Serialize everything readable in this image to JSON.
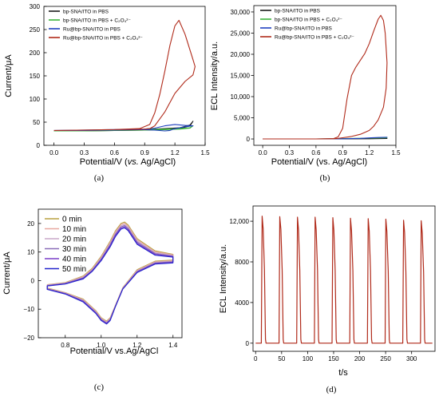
{
  "chart_data": [
    {
      "panel": "(a)",
      "type": "line",
      "xlabel_main": "Potential/V (",
      "xlabel_italic": "vs.",
      "xlabel_end": " Ag/AgCl)",
      "ylabel": "Current/μA",
      "xlim": [
        -0.1,
        1.5
      ],
      "ylim": [
        0,
        300
      ],
      "xticks": [
        0.0,
        0.3,
        0.6,
        0.9,
        1.2,
        1.5
      ],
      "xtick_labels": [
        "0.0",
        "0.3",
        "0.6",
        "0.9",
        "1.2",
        "1.5"
      ],
      "yticks": [
        0,
        50,
        100,
        150,
        200,
        250,
        300
      ],
      "ytick_labels": [
        "0",
        "50",
        "100",
        "150",
        "200",
        "250",
        "300"
      ],
      "legend_position": "top-left",
      "series": [
        {
          "name": "bp-SNA/ITO in PBS",
          "color": "#1a1a1a",
          "x": [
            0.0,
            0.3,
            0.6,
            0.9,
            1.1,
            1.25,
            1.35,
            1.38,
            1.35,
            1.25,
            1.1,
            0.9,
            0.6,
            0.3,
            0.0
          ],
          "y": [
            31,
            32,
            33,
            34,
            36,
            38,
            44,
            52,
            42,
            36,
            34,
            33,
            32,
            31,
            31
          ]
        },
        {
          "name": "bp-SNA/ITO in PBS + C₂O₄²⁻",
          "color": "#3cb33c",
          "x": [
            0.0,
            0.3,
            0.6,
            0.9,
            1.1,
            1.25,
            1.35,
            1.38,
            1.35,
            1.25,
            1.1,
            0.9,
            0.6,
            0.3,
            0.0
          ],
          "y": [
            31,
            32,
            33,
            34,
            35,
            36,
            38,
            42,
            37,
            35,
            34,
            33,
            32,
            31,
            31
          ]
        },
        {
          "name": "Ru@bp-SNA/ITO in PBS",
          "color": "#1f3fbf",
          "x": [
            0.0,
            0.3,
            0.6,
            0.9,
            1.0,
            1.1,
            1.2,
            1.3,
            1.38,
            1.3,
            1.2,
            1.15,
            1.1,
            1.0,
            0.9,
            0.6,
            0.3,
            0.0
          ],
          "y": [
            32,
            33,
            34,
            35,
            37,
            42,
            45,
            43,
            42,
            40,
            36,
            32,
            31,
            33,
            34,
            33,
            32,
            32
          ]
        },
        {
          "name": "Ru@bp-SNA/ITO in PBS + C₂O₄²⁻",
          "color": "#b02a1a",
          "x": [
            0.0,
            0.3,
            0.6,
            0.85,
            0.95,
            1.0,
            1.05,
            1.1,
            1.15,
            1.2,
            1.24,
            1.3,
            1.38,
            1.4,
            1.38,
            1.3,
            1.2,
            1.1,
            1.0,
            0.95,
            0.9,
            0.6,
            0.3,
            0.0
          ],
          "y": [
            32,
            33,
            34,
            36,
            45,
            70,
            110,
            160,
            215,
            258,
            270,
            240,
            185,
            170,
            152,
            138,
            112,
            72,
            42,
            36,
            35,
            34,
            33,
            32
          ]
        }
      ]
    },
    {
      "panel": "(b)",
      "type": "line",
      "xlabel": "Potential/V (vs. Ag/AgCl)",
      "ylabel": "ECL Intensity/a.u.",
      "xlim": [
        -0.1,
        1.5
      ],
      "ylim": [
        -1500,
        31500
      ],
      "xticks": [
        0.0,
        0.3,
        0.6,
        0.9,
        1.2,
        1.5
      ],
      "xtick_labels": [
        "0.0",
        "0.3",
        "0.6",
        "0.9",
        "1.2",
        "1.5"
      ],
      "yticks": [
        0,
        5000,
        10000,
        15000,
        20000,
        25000,
        30000
      ],
      "ytick_labels": [
        "0",
        "5,000",
        "10,000",
        "15,000",
        "20,000",
        "25,000",
        "30,000"
      ],
      "legend_position": "top-left",
      "series": [
        {
          "name": "bp-SNA/ITO in PBS",
          "color": "#1a1a1a",
          "x": [
            0.0,
            0.6,
            0.9,
            1.2,
            1.4,
            1.2,
            0.9,
            0.6,
            0.0
          ],
          "y": [
            0,
            0,
            0,
            50,
            100,
            50,
            0,
            0,
            0
          ]
        },
        {
          "name": "bp-SNA/ITO in PBS + C₂O₄²⁻",
          "color": "#3cb33c",
          "x": [
            0.0,
            0.6,
            0.9,
            1.2,
            1.4,
            1.2,
            0.9,
            0.6,
            0.0
          ],
          "y": [
            0,
            0,
            100,
            200,
            300,
            200,
            100,
            0,
            0
          ]
        },
        {
          "name": "Ru@bp-SNA/ITO in PBS",
          "color": "#1f3fbf",
          "x": [
            0.0,
            0.6,
            0.9,
            1.1,
            1.2,
            1.3,
            1.4,
            1.3,
            1.2,
            1.1,
            0.9,
            0.6,
            0.0
          ],
          "y": [
            0,
            0,
            50,
            150,
            250,
            350,
            400,
            350,
            250,
            150,
            50,
            0,
            0
          ]
        },
        {
          "name": "Ru@bp-SNA/ITO in PBS + C₂O₄²⁻",
          "color": "#b02a1a",
          "x": [
            0.0,
            0.6,
            0.8,
            0.85,
            0.9,
            0.95,
            1.0,
            1.05,
            1.1,
            1.15,
            1.2,
            1.25,
            1.3,
            1.33,
            1.36,
            1.38,
            1.4,
            1.39,
            1.36,
            1.3,
            1.25,
            1.2,
            1.1,
            1.0,
            0.9,
            0.85,
            0.8,
            0.6,
            0.0
          ],
          "y": [
            0,
            0,
            100,
            500,
            2500,
            9500,
            15000,
            17000,
            18600,
            20200,
            22500,
            25500,
            28300,
            29200,
            28000,
            25000,
            18000,
            12000,
            7500,
            4500,
            3000,
            2000,
            1100,
            600,
            300,
            150,
            50,
            0,
            0
          ]
        }
      ]
    },
    {
      "panel": "(c)",
      "type": "line",
      "xlabel": "Potential/V vs.Ag/AgCl",
      "ylabel": "Current/μA",
      "xlim": [
        0.65,
        1.45
      ],
      "ylim": [
        -20,
        25
      ],
      "xticks": [
        0.8,
        1.0,
        1.2,
        1.4
      ],
      "xtick_labels": [
        "0.8",
        "1.0",
        "1.2",
        "1.4"
      ],
      "yticks": [
        -20,
        -10,
        0,
        10,
        20
      ],
      "ytick_labels": [
        "−20",
        "−10",
        "0",
        "10",
        "20"
      ],
      "legend_position": "top-left",
      "series": [
        {
          "name": "0 min",
          "color": "#b8a040",
          "x": [
            0.7,
            0.8,
            0.9,
            0.95,
            1.0,
            1.05,
            1.08,
            1.11,
            1.13,
            1.15,
            1.2,
            1.3,
            1.4,
            1.4,
            1.3,
            1.2,
            1.12,
            1.08,
            1.05,
            1.03,
            1.0,
            0.97,
            0.9,
            0.8,
            0.7,
            0.7
          ],
          "y": [
            -1.4,
            -0.7,
            1.6,
            4.3,
            8.5,
            13.8,
            17.5,
            20.0,
            20.5,
            19.5,
            14.7,
            10.4,
            9.2,
            7.2,
            6.8,
            3.8,
            -2.5,
            -8.5,
            -13.0,
            -14.2,
            -13.0,
            -10.5,
            -6.5,
            -4.2,
            -2.6,
            -1.4
          ]
        },
        {
          "name": "10 min",
          "color": "#e8a8a0",
          "x": [
            0.7,
            0.8,
            0.9,
            0.95,
            1.0,
            1.05,
            1.08,
            1.11,
            1.13,
            1.15,
            1.2,
            1.3,
            1.4,
            1.4,
            1.3,
            1.2,
            1.12,
            1.08,
            1.05,
            1.03,
            1.0,
            0.97,
            0.9,
            0.8,
            0.7,
            0.7
          ],
          "y": [
            -1.5,
            -0.8,
            1.4,
            4.0,
            8.2,
            13.4,
            17.1,
            19.6,
            20.1,
            19.1,
            14.3,
            10.1,
            9.0,
            7.0,
            6.6,
            3.6,
            -2.6,
            -8.6,
            -13.2,
            -14.4,
            -13.2,
            -10.7,
            -6.7,
            -4.3,
            -2.7,
            -1.5
          ]
        },
        {
          "name": "20 min",
          "color": "#c8a8c8",
          "x": [
            0.7,
            0.8,
            0.9,
            0.95,
            1.0,
            1.05,
            1.08,
            1.11,
            1.13,
            1.15,
            1.2,
            1.3,
            1.4,
            1.4,
            1.3,
            1.2,
            1.12,
            1.08,
            1.05,
            1.03,
            1.0,
            0.97,
            0.9,
            0.8,
            0.7,
            0.7
          ],
          "y": [
            -1.6,
            -0.9,
            1.2,
            3.8,
            7.9,
            13.0,
            16.7,
            19.2,
            19.7,
            18.7,
            13.9,
            9.8,
            8.8,
            6.8,
            6.4,
            3.4,
            -2.7,
            -8.7,
            -13.4,
            -14.6,
            -13.4,
            -10.9,
            -6.9,
            -4.4,
            -2.8,
            -1.6
          ]
        },
        {
          "name": "30 min",
          "color": "#8a6db8",
          "x": [
            0.7,
            0.8,
            0.9,
            0.95,
            1.0,
            1.05,
            1.08,
            1.11,
            1.13,
            1.15,
            1.2,
            1.3,
            1.4,
            1.4,
            1.3,
            1.2,
            1.12,
            1.08,
            1.05,
            1.03,
            1.0,
            0.97,
            0.9,
            0.8,
            0.7,
            0.7
          ],
          "y": [
            -1.7,
            -1.0,
            1.0,
            3.6,
            7.6,
            12.6,
            16.3,
            18.8,
            19.3,
            18.3,
            13.5,
            9.5,
            8.6,
            6.6,
            6.2,
            3.2,
            -2.8,
            -8.8,
            -13.6,
            -14.8,
            -13.6,
            -11.1,
            -7.1,
            -4.5,
            -2.9,
            -1.7
          ]
        },
        {
          "name": "40 min",
          "color": "#7a3ec8",
          "x": [
            0.7,
            0.8,
            0.9,
            0.95,
            1.0,
            1.05,
            1.08,
            1.11,
            1.13,
            1.15,
            1.2,
            1.3,
            1.4,
            1.4,
            1.3,
            1.2,
            1.12,
            1.08,
            1.05,
            1.03,
            1.0,
            0.97,
            0.9,
            0.8,
            0.7,
            0.7
          ],
          "y": [
            -1.8,
            -1.1,
            0.8,
            3.4,
            7.3,
            12.2,
            15.9,
            18.4,
            18.9,
            17.9,
            13.1,
            9.2,
            8.4,
            6.4,
            6.0,
            3.0,
            -2.9,
            -8.9,
            -13.8,
            -15.0,
            -13.8,
            -11.3,
            -7.3,
            -4.6,
            -3.0,
            -1.8
          ]
        },
        {
          "name": "50 min",
          "color": "#2222cc",
          "x": [
            0.7,
            0.8,
            0.9,
            0.95,
            1.0,
            1.05,
            1.08,
            1.11,
            1.13,
            1.15,
            1.2,
            1.3,
            1.4,
            1.4,
            1.3,
            1.2,
            1.12,
            1.08,
            1.05,
            1.03,
            1.0,
            0.97,
            0.9,
            0.8,
            0.7,
            0.7
          ],
          "y": [
            -1.9,
            -1.2,
            0.6,
            3.2,
            7.0,
            11.8,
            15.5,
            18.0,
            18.5,
            17.5,
            12.7,
            8.9,
            8.2,
            6.2,
            5.8,
            2.8,
            -3.0,
            -9.0,
            -14.0,
            -15.2,
            -14.0,
            -11.5,
            -7.5,
            -4.7,
            -3.1,
            -1.9
          ]
        }
      ]
    },
    {
      "panel": "(d)",
      "type": "line",
      "xlabel": "t/s",
      "ylabel": "ECL Intensity/a.u.",
      "xlim": [
        -5,
        345
      ],
      "ylim": [
        -800,
        13500
      ],
      "xticks": [
        0,
        50,
        100,
        150,
        200,
        250,
        300
      ],
      "xtick_labels": [
        "0",
        "50",
        "100",
        "150",
        "200",
        "250",
        "300"
      ],
      "yticks": [
        0,
        4000,
        8000,
        12000
      ],
      "ytick_labels": [
        "0",
        "4000",
        "8000",
        "12,000"
      ],
      "pulse_starts": [
        11,
        45,
        79,
        113,
        147,
        181,
        215,
        249,
        283,
        317
      ],
      "pulse_peaks": [
        12500,
        12450,
        12400,
        12400,
        12350,
        12300,
        12250,
        12200,
        12100,
        12050
      ],
      "series": [
        {
          "name": "",
          "color": "#b02a1a"
        }
      ]
    }
  ],
  "panel_labels": [
    "(a)",
    "(b)",
    "(c)",
    "(d)"
  ]
}
